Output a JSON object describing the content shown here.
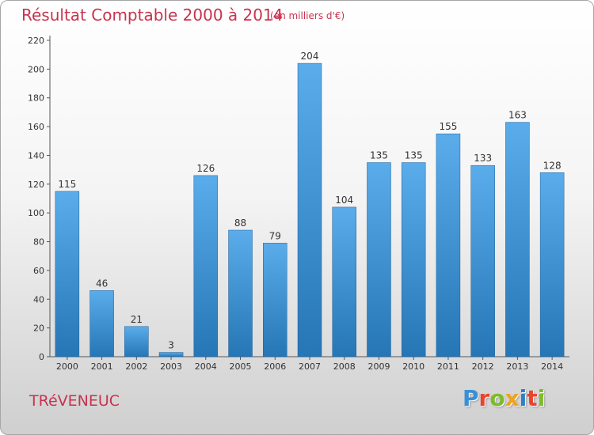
{
  "header": {
    "title": "Résultat Comptable 2000 à 2014",
    "unit": "(en milliers d'€)"
  },
  "footer": {
    "commune": "TRéVENEUC",
    "logo_letters": [
      "P",
      "r",
      "o",
      "x",
      "i",
      "t",
      "i"
    ],
    "logo_colors": [
      "#3a8fd6",
      "#e8442e",
      "#7dbb2c",
      "#f0a21c",
      "#2f7ec6",
      "#e8442e",
      "#7dbb2c"
    ]
  },
  "colors": {
    "bar_top": "#5aacea",
    "bar_bottom": "#2676b6",
    "text_accent": "#c8324f"
  },
  "chart_data": {
    "type": "bar",
    "title": "Résultat Comptable 2000 à 2014",
    "xlabel": "",
    "ylabel": "",
    "categories": [
      "2000",
      "2001",
      "2002",
      "2003",
      "2004",
      "2005",
      "2006",
      "2007",
      "2008",
      "2009",
      "2010",
      "2011",
      "2012",
      "2013",
      "2014"
    ],
    "values": [
      115,
      46,
      21,
      3,
      126,
      88,
      79,
      204,
      104,
      135,
      135,
      155,
      133,
      163,
      128
    ],
    "ylim": [
      0,
      220
    ],
    "yticks": [
      0,
      20,
      40,
      60,
      80,
      100,
      120,
      140,
      160,
      180,
      200,
      220
    ],
    "grid": false,
    "show_data_labels": true
  }
}
